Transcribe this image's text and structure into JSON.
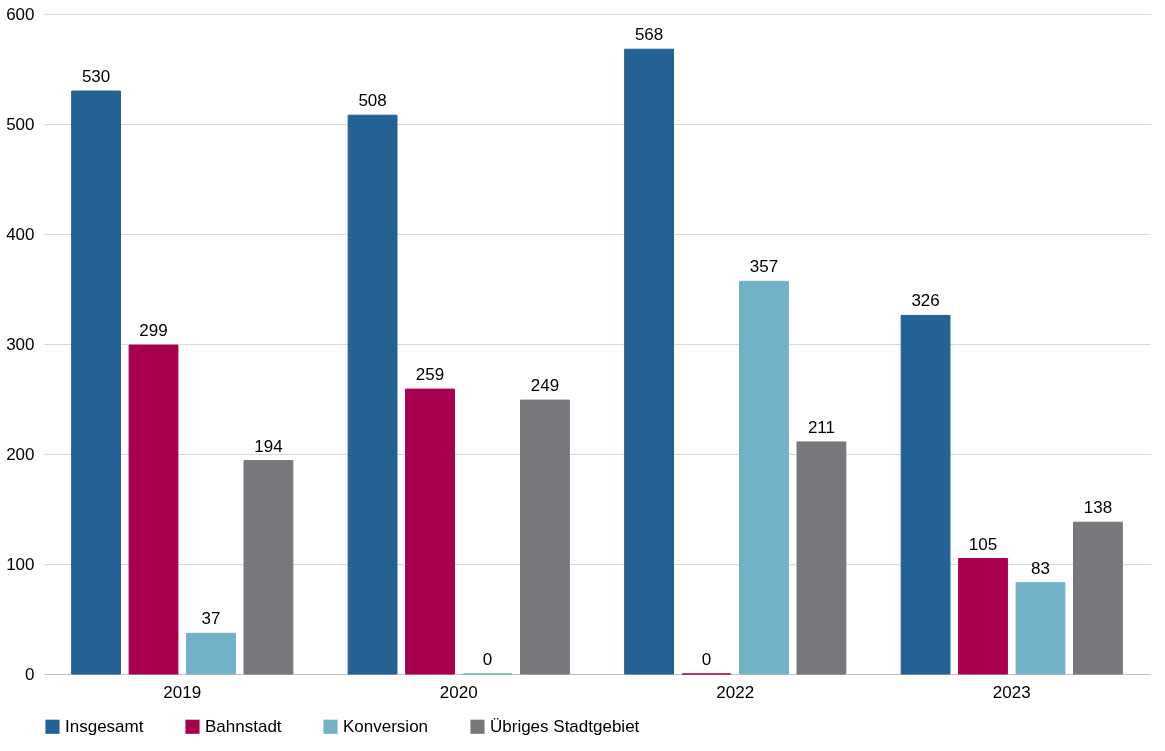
{
  "chart_data": {
    "type": "bar",
    "categories": [
      "2019",
      "2020",
      "2022",
      "2023"
    ],
    "series": [
      {
        "name": "Insgesamt",
        "color": "#246194",
        "values": [
          530,
          508,
          568,
          326
        ]
      },
      {
        "name": "Bahnstadt",
        "color": "#a8004f",
        "values": [
          299,
          259,
          0,
          105
        ]
      },
      {
        "name": "Konversion",
        "color": "#73b1c9",
        "values": [
          37,
          0,
          357,
          83
        ]
      },
      {
        "name": "Übriges Stadtgebiet",
        "color": "#76787b",
        "values": [
          194,
          249,
          211,
          138
        ]
      }
    ],
    "ylim": [
      0,
      600
    ],
    "yticks": [
      0,
      100,
      200,
      300,
      400,
      500,
      600
    ],
    "grid": "y",
    "legend": "bottom",
    "data_labels": true
  }
}
